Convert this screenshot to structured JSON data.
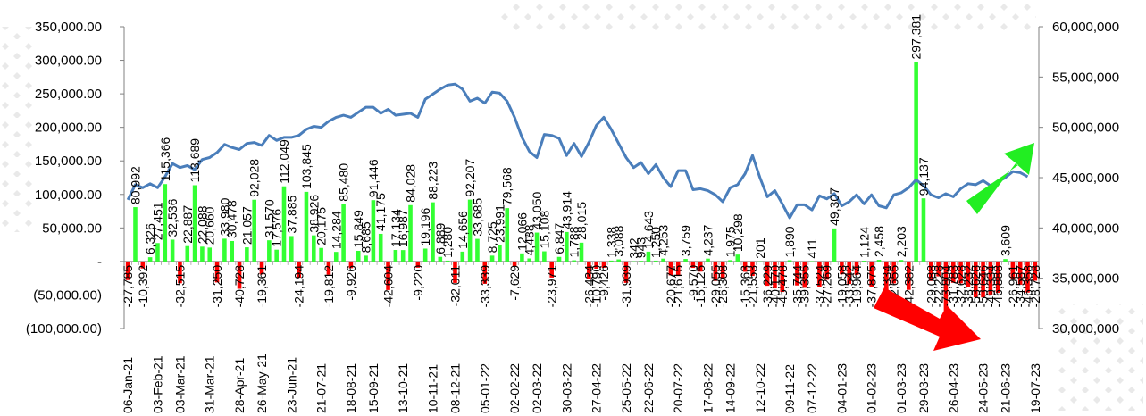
{
  "chart_data": {
    "type": "bar",
    "title": "",
    "xlabel": "",
    "ylabel": "",
    "y_left": {
      "ylim": [
        -100000,
        350000
      ],
      "ticks": [
        350000,
        300000,
        250000,
        200000,
        150000,
        100000,
        50000,
        0,
        -50000,
        -100000
      ],
      "tick_labels": [
        "350,000.00",
        "300,000.00",
        "250,000.00",
        "200,000.00",
        "150,000.00",
        "100,000.00",
        "50,000.00",
        "-",
        "(50,000.00)",
        "(100,000.00)"
      ]
    },
    "y_right": {
      "ylim": [
        30000000,
        60000000
      ],
      "ticks": [
        60000000,
        55000000,
        50000000,
        45000000,
        40000000,
        35000000,
        30000000
      ],
      "tick_labels": [
        "60,000,000",
        "55,000,000",
        "50,000,000",
        "45,000,000",
        "40,000,000",
        "35,000,000",
        "30,000,000"
      ]
    },
    "x_tick_labels": [
      "06-Jan-21",
      "03-Feb-21",
      "03-Mar-21",
      "31-Mar-21",
      "28-Apr-21",
      "26-May-21",
      "23-Jun-21",
      "21-07-21",
      "18-08-21",
      "15-09-21",
      "13-10-21",
      "10-11-21",
      "08-12-21",
      "05-01-22",
      "02-02-22",
      "02-03-22",
      "30-03-22",
      "27-04-22",
      "25-05-22",
      "22-06-22",
      "20-07-22",
      "17-08-22",
      "14-09-22",
      "12-10-22",
      "09-11-22",
      "07-12-22",
      "04-01-23",
      "01-02-23",
      "01-03-23",
      "29-03-23",
      "26-04-23",
      "24-05-23",
      "21-06-23",
      "19-07-23"
    ],
    "grid": false,
    "legend": "none",
    "series": [
      {
        "kind": "bar",
        "axis": "left",
        "color_positive": "#33ff33",
        "color_negative": "#ff0000",
        "values": [
          -27785,
          80992,
          -10392,
          6326,
          27451,
          115366,
          32536,
          -32515,
          22887,
          113689,
          22088,
          20660,
          -31250,
          33980,
          30478,
          -40728,
          21057,
          92028,
          -19361,
          31570,
          17576,
          112049,
          37885,
          -24194,
          103845,
          38926,
          20175,
          -19812,
          14284,
          85480,
          -9926,
          15849,
          8685,
          91446,
          41175,
          -42604,
          17134,
          16987,
          84028,
          -9220,
          19196,
          88223,
          6889,
          1280,
          -32011,
          14656,
          92207,
          33685,
          -33339,
          8725,
          23991,
          79568,
          -7629,
          12066,
          4488,
          43050,
          15108,
          -23971,
          6847,
          43914,
          1788,
          28015,
          -26434,
          -10790,
          -9426,
          1338,
          3088,
          -31939,
          342,
          943,
          14643,
          1250,
          4253,
          -20677,
          -21615,
          3759,
          -9570,
          -15125,
          4237,
          -29055,
          -26308,
          1975,
          10298,
          -15363,
          -21553,
          201,
          -36229,
          -40170,
          -45478,
          1890,
          -35744,
          -39355,
          411,
          -37524,
          -27269,
          49307,
          -19058,
          -33542,
          -19964,
          1124,
          -37875,
          2458,
          -50334,
          -32655,
          2203,
          -42382,
          297381,
          94137,
          -29088,
          -22228,
          -73804,
          -31783,
          -32628,
          -38232,
          -53628,
          -53646,
          -49334,
          -46888,
          3609,
          -26961,
          -34587,
          -46358,
          -28728
        ]
      },
      {
        "kind": "line",
        "axis": "right",
        "color": "#4a7ebb",
        "values": [
          42800000,
          44300000,
          44000000,
          44400000,
          44000000,
          45100000,
          46400000,
          46000000,
          46200000,
          45800000,
          46800000,
          47000000,
          47500000,
          48300000,
          48000000,
          47800000,
          48400000,
          48500000,
          48200000,
          49200000,
          48700000,
          49000000,
          49000000,
          49200000,
          49800000,
          50100000,
          50000000,
          50600000,
          51000000,
          51200000,
          51000000,
          51500000,
          52000000,
          52000000,
          51400000,
          51800000,
          51200000,
          51300000,
          51400000,
          51000000,
          52800000,
          53300000,
          53800000,
          54200000,
          54300000,
          53800000,
          52600000,
          52900000,
          52400000,
          53500000,
          53400000,
          52600000,
          51000000,
          49000000,
          47600000,
          47000000,
          49300000,
          49200000,
          48900000,
          47200000,
          48400000,
          47100000,
          48500000,
          50200000,
          51000000,
          49800000,
          48400000,
          47000000,
          46000000,
          46500000,
          45400000,
          46300000,
          45000000,
          44100000,
          45700000,
          45700000,
          43800000,
          43900000,
          43700000,
          43300000,
          42600000,
          44000000,
          44300000,
          45400000,
          47200000,
          45000000,
          43100000,
          43700000,
          42400000,
          41000000,
          42300000,
          42300000,
          41800000,
          43200000,
          42900000,
          43400000,
          42200000,
          42600000,
          43300000,
          42400000,
          43300000,
          42200000,
          42000000,
          43300000,
          43500000,
          44000000,
          44800000,
          44200000,
          43300000,
          43000000,
          43400000,
          43100000,
          43900000,
          44400000,
          44300000,
          44700000,
          44200000,
          44600000,
          45000000,
          45600000,
          45500000,
          45100000
        ]
      }
    ],
    "annotations": [
      "up-right green arrow",
      "down-right red arrow"
    ],
    "colors": {
      "up_arrow": "#22ee22",
      "down_arrow": "#ff0000",
      "line": "#4a7ebb",
      "axis": "#808080"
    }
  }
}
